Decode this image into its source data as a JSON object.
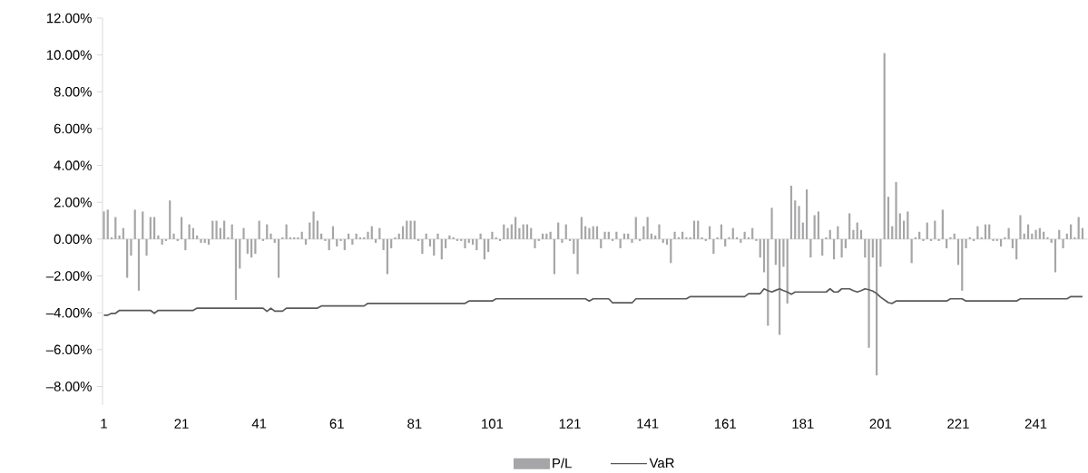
{
  "chart_data": {
    "type": "bar",
    "categories": [
      "1",
      null,
      null,
      null,
      null,
      null,
      null,
      null,
      null,
      null,
      null,
      null,
      null,
      null,
      null,
      null,
      null,
      null,
      null,
      null,
      "21",
      null,
      null,
      null,
      null,
      null,
      null,
      null,
      null,
      null,
      null,
      null,
      null,
      null,
      null,
      null,
      null,
      null,
      null,
      null,
      "41",
      null,
      null,
      null,
      null,
      null,
      null,
      null,
      null,
      null,
      null,
      null,
      null,
      null,
      null,
      null,
      null,
      null,
      null,
      null,
      "61",
      null,
      null,
      null,
      null,
      null,
      null,
      null,
      null,
      null,
      null,
      null,
      null,
      null,
      null,
      null,
      null,
      null,
      null,
      null,
      "81",
      null,
      null,
      null,
      null,
      null,
      null,
      null,
      null,
      null,
      null,
      null,
      null,
      null,
      null,
      null,
      null,
      null,
      null,
      null,
      "101",
      null,
      null,
      null,
      null,
      null,
      null,
      null,
      null,
      null,
      null,
      null,
      null,
      null,
      null,
      null,
      null,
      null,
      null,
      null,
      "121",
      null,
      null,
      null,
      null,
      null,
      null,
      null,
      null,
      null,
      null,
      null,
      null,
      null,
      null,
      null,
      null,
      null,
      null,
      null,
      "141",
      null,
      null,
      null,
      null,
      null,
      null,
      null,
      null,
      null,
      null,
      null,
      null,
      null,
      null,
      null,
      null,
      null,
      null,
      null,
      "161",
      null,
      null,
      null,
      null,
      null,
      null,
      null,
      null,
      null,
      null,
      null,
      null,
      null,
      null,
      null,
      null,
      null,
      null,
      null,
      "181",
      null,
      null,
      null,
      null,
      null,
      null,
      null,
      null,
      null,
      null,
      null,
      null,
      null,
      null,
      null,
      null,
      null,
      null,
      null,
      "201",
      null,
      null,
      null,
      null,
      null,
      null,
      null,
      null,
      null,
      null,
      null,
      null,
      null,
      null,
      null,
      null,
      null,
      null,
      null,
      "221",
      null,
      null,
      null,
      null,
      null,
      null,
      null,
      null,
      null,
      null,
      null,
      null,
      null,
      null,
      null,
      null,
      null,
      null,
      null,
      "241",
      null,
      null,
      null,
      null,
      null,
      null,
      null,
      null,
      null,
      null,
      null,
      null
    ],
    "series": [
      {
        "name": "P/L",
        "color": "#a6a6a8",
        "values": [
          1.5,
          1.6,
          0.1,
          1.2,
          0.2,
          0.6,
          -2.1,
          -0.9,
          1.6,
          -2.8,
          1.5,
          -0.9,
          1.2,
          1.2,
          0.2,
          -0.3,
          -0.1,
          2.1,
          0.3,
          -0.1,
          1.2,
          -0.6,
          0.8,
          0.6,
          0.2,
          -0.2,
          -0.2,
          -0.3,
          1.0,
          1.0,
          0.6,
          1.0,
          0.1,
          0.8,
          -3.3,
          -1.6,
          0.6,
          -0.8,
          -1.0,
          -0.8,
          1.0,
          -0.1,
          0.8,
          0.3,
          -0.2,
          -2.1,
          0.1,
          0.8,
          0.1,
          0.1,
          0.1,
          0.4,
          -0.3,
          0.9,
          1.5,
          1.0,
          0.3,
          -0.1,
          -0.6,
          0.7,
          -0.4,
          -0.1,
          -0.6,
          0.3,
          -0.3,
          0.3,
          0.1,
          0.1,
          0.4,
          0.7,
          -0.2,
          0.6,
          -0.6,
          -1.9,
          -0.5,
          0.1,
          0.3,
          0.7,
          1.0,
          1.0,
          1.0,
          -0.1,
          -0.8,
          0.3,
          -0.4,
          -0.9,
          0.3,
          -1.1,
          -0.5,
          0.2,
          0.1,
          -0.1,
          -0.1,
          -0.5,
          -0.2,
          -0.3,
          -0.6,
          0.3,
          -1.1,
          -0.7,
          0.4,
          0.1,
          -0.1,
          0.8,
          0.6,
          0.8,
          1.2,
          0.6,
          0.8,
          0.8,
          0.6,
          -0.5,
          -0.1,
          0.3,
          0.3,
          0.4,
          -1.9,
          0.9,
          -0.2,
          0.8,
          -0.1,
          -0.8,
          -1.9,
          1.2,
          0.7,
          0.6,
          0.7,
          0.7,
          -0.5,
          0.4,
          0.4,
          -0.1,
          0.4,
          -0.5,
          0.3,
          0.3,
          -0.2,
          1.2,
          -0.1,
          0.7,
          1.2,
          0.3,
          0.2,
          0.8,
          -0.2,
          -0.3,
          -1.3,
          0.4,
          0.1,
          0.4,
          0.1,
          0.1,
          1.0,
          1.0,
          0.1,
          -0.1,
          0.7,
          -0.8,
          0.1,
          0.8,
          -0.4,
          0.1,
          0.6,
          0.1,
          -0.2,
          0.4,
          0.1,
          0.6,
          -0.1,
          -1.0,
          -1.8,
          -4.7,
          1.7,
          -1.4,
          -5.2,
          -1.5,
          -3.5,
          2.9,
          2.1,
          1.8,
          0.9,
          2.7,
          -1.0,
          1.3,
          1.5,
          -0.9,
          0.1,
          0.5,
          -1.1,
          0.7,
          -1.0,
          -0.5,
          1.4,
          0.5,
          0.9,
          0.5,
          -1.0,
          -5.9,
          -1.0,
          -7.4,
          -1.5,
          10.1,
          2.3,
          0.7,
          3.1,
          1.4,
          1.0,
          1.5,
          -1.3,
          0.1,
          0.4,
          -0.1,
          0.9,
          -0.1,
          1.0,
          -0.1,
          1.6,
          -0.5,
          0.1,
          0.3,
          -1.4,
          -2.8,
          -0.5,
          0.1,
          -0.1,
          0.7,
          0.1,
          0.8,
          0.8,
          -0.1,
          -0.1,
          -0.4,
          0.1,
          0.6,
          -0.5,
          -1.1,
          1.3,
          0.3,
          0.8,
          0.3,
          0.5,
          0.6,
          0.4,
          0.1,
          -0.2,
          -1.8,
          0.5,
          -0.5,
          0.3,
          0.8,
          0.1,
          1.2,
          0.6
        ]
      },
      {
        "name": "VaR",
        "type": "line",
        "color": "#595959",
        "values": [
          -4.13,
          -4.13,
          -4.03,
          -4.03,
          -3.87,
          -3.87,
          -3.87,
          -3.87,
          -3.87,
          -3.87,
          -3.87,
          -3.87,
          -3.87,
          -4.03,
          -3.87,
          -3.87,
          -3.87,
          -3.87,
          -3.87,
          -3.87,
          -3.87,
          -3.87,
          -3.87,
          -3.87,
          -3.75,
          -3.75,
          -3.75,
          -3.75,
          -3.75,
          -3.75,
          -3.75,
          -3.75,
          -3.75,
          -3.75,
          -3.75,
          -3.75,
          -3.75,
          -3.75,
          -3.75,
          -3.75,
          -3.75,
          -3.75,
          -3.92,
          -3.75,
          -3.91,
          -3.91,
          -3.91,
          -3.75,
          -3.75,
          -3.75,
          -3.75,
          -3.75,
          -3.75,
          -3.75,
          -3.75,
          -3.75,
          -3.63,
          -3.63,
          -3.63,
          -3.63,
          -3.63,
          -3.63,
          -3.63,
          -3.63,
          -3.63,
          -3.63,
          -3.63,
          -3.63,
          -3.49,
          -3.49,
          -3.49,
          -3.49,
          -3.49,
          -3.49,
          -3.49,
          -3.49,
          -3.49,
          -3.49,
          -3.49,
          -3.49,
          -3.49,
          -3.49,
          -3.49,
          -3.49,
          -3.49,
          -3.49,
          -3.49,
          -3.49,
          -3.49,
          -3.49,
          -3.49,
          -3.49,
          -3.49,
          -3.49,
          -3.36,
          -3.36,
          -3.36,
          -3.36,
          -3.36,
          -3.36,
          -3.36,
          -3.24,
          -3.24,
          -3.24,
          -3.24,
          -3.24,
          -3.24,
          -3.24,
          -3.24,
          -3.24,
          -3.24,
          -3.24,
          -3.24,
          -3.24,
          -3.24,
          -3.24,
          -3.24,
          -3.24,
          -3.24,
          -3.24,
          -3.24,
          -3.24,
          -3.24,
          -3.24,
          -3.24,
          -3.36,
          -3.24,
          -3.24,
          -3.24,
          -3.24,
          -3.24,
          -3.46,
          -3.46,
          -3.46,
          -3.46,
          -3.46,
          -3.46,
          -3.24,
          -3.24,
          -3.24,
          -3.24,
          -3.24,
          -3.24,
          -3.24,
          -3.24,
          -3.24,
          -3.24,
          -3.24,
          -3.24,
          -3.24,
          -3.24,
          -3.12,
          -3.12,
          -3.12,
          -3.12,
          -3.12,
          -3.12,
          -3.12,
          -3.12,
          -3.12,
          -3.12,
          -3.12,
          -3.12,
          -3.12,
          -3.12,
          -3.12,
          -2.96,
          -2.96,
          -2.96,
          -2.96,
          -2.7,
          -2.8,
          -2.87,
          -2.78,
          -2.7,
          -2.8,
          -2.87,
          -2.99,
          -2.87,
          -2.87,
          -2.87,
          -2.87,
          -2.87,
          -2.87,
          -2.87,
          -2.87,
          -2.87,
          -2.7,
          -2.87,
          -2.87,
          -2.7,
          -2.7,
          -2.7,
          -2.8,
          -2.87,
          -2.8,
          -2.7,
          -2.75,
          -2.82,
          -2.95,
          -3.15,
          -3.3,
          -3.45,
          -3.49,
          -3.36,
          -3.36,
          -3.36,
          -3.36,
          -3.36,
          -3.36,
          -3.36,
          -3.36,
          -3.36,
          -3.36,
          -3.36,
          -3.36,
          -3.36,
          -3.36,
          -3.24,
          -3.24,
          -3.24,
          -3.24,
          -3.36,
          -3.36,
          -3.36,
          -3.36,
          -3.36,
          -3.36,
          -3.36,
          -3.36,
          -3.36,
          -3.36,
          -3.36,
          -3.36,
          -3.36,
          -3.36,
          -3.24,
          -3.24,
          -3.24,
          -3.24,
          -3.24,
          -3.24,
          -3.24,
          -3.24,
          -3.24,
          -3.24,
          -3.24,
          -3.24,
          -3.24,
          -3.12,
          -3.12,
          -3.12,
          -3.12
        ]
      }
    ],
    "ylim": [
      -9,
      12
    ],
    "yticks": [
      {
        "value": -8,
        "label": "–8.00%"
      },
      {
        "value": -6,
        "label": "–6.00%"
      },
      {
        "value": -4,
        "label": "–4.00%"
      },
      {
        "value": -2,
        "label": "–2.00%"
      },
      {
        "value": 0,
        "label": "0.00%"
      },
      {
        "value": 2,
        "label": "2.00%"
      },
      {
        "value": 4,
        "label": "4.00%"
      },
      {
        "value": 6,
        "label": "6.00%"
      },
      {
        "value": 8,
        "label": "8.00%"
      },
      {
        "value": 10,
        "label": "10.00%"
      },
      {
        "value": 12,
        "label": "12.00%"
      }
    ],
    "ref_lines": [
      {
        "axis": "y",
        "value": 0,
        "color": "#d9d9d9"
      }
    ],
    "marker": "none",
    "legend": "bottom",
    "grid": false
  }
}
